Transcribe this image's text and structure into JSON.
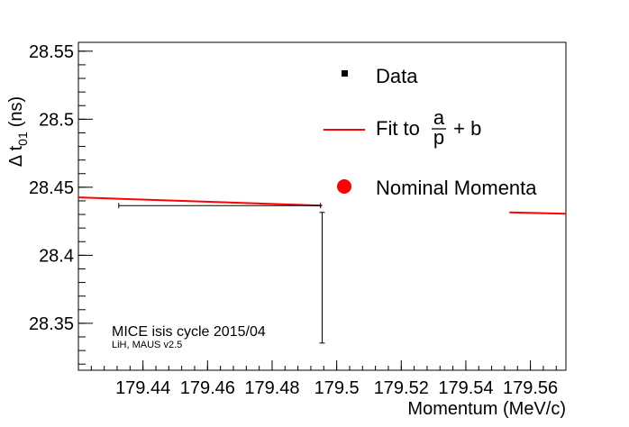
{
  "chart_data": {
    "type": "scatter",
    "xlabel": "Momentum (MeV/c)",
    "ylabel_main": "Δ t",
    "ylabel_sub": "01",
    "ylabel_unit": "(ns)",
    "xlim": [
      179.42,
      179.571
    ],
    "ylim": [
      28.3155,
      28.5565
    ],
    "xticks": [
      {
        "value": 179.44,
        "label": "179.44"
      },
      {
        "value": 179.46,
        "label": "179.46"
      },
      {
        "value": 179.48,
        "label": "179.48"
      },
      {
        "value": 179.5,
        "label": "179.5"
      },
      {
        "value": 179.52,
        "label": "179.52"
      },
      {
        "value": 179.54,
        "label": "179.54"
      },
      {
        "value": 179.56,
        "label": "179.56"
      }
    ],
    "yticks": [
      {
        "value": 28.35,
        "label": "28.35"
      },
      {
        "value": 28.4,
        "label": "28.4"
      },
      {
        "value": 28.45,
        "label": "28.45"
      },
      {
        "value": 28.5,
        "label": "28.5"
      },
      {
        "value": 28.55,
        "label": "28.55"
      }
    ],
    "data_points": [
      {
        "x": 179.4325,
        "y": 28.4365,
        "xerr_low": 179.4325,
        "xerr_high": 179.495,
        "yerr_low": 28.4365,
        "yerr_high": 28.4365
      },
      {
        "x": 179.4955,
        "y": 28.4365,
        "xerr_low": 179.4955,
        "xerr_high": 179.4955,
        "yerr_low": 28.3355,
        "yerr_high": 28.4315
      }
    ],
    "fit_segments": [
      {
        "x": [
          179.42,
          179.4955
        ],
        "y": [
          28.4425,
          28.4365
        ]
      },
      {
        "x": [
          179.5535,
          179.571
        ],
        "y": [
          28.4315,
          28.4305
        ]
      }
    ],
    "legend": {
      "position": "top-right",
      "entries": [
        {
          "label": "Data",
          "marker": "square"
        },
        {
          "label_prefix": "Fit to ",
          "frac_num": "a",
          "frac_den": "p",
          "label_suffix": " + b",
          "marker": "line"
        },
        {
          "label": "Nominal Momenta",
          "marker": "circle"
        }
      ]
    },
    "annotations": [
      "MICE isis cycle 2015/04",
      "LiH, MAUS v2.5"
    ],
    "colors": {
      "data": "#000000",
      "fit": "#ff0000",
      "nominal": "#ff0000",
      "axis": "#000000"
    }
  }
}
